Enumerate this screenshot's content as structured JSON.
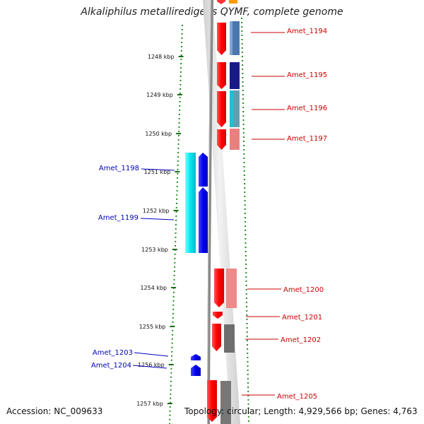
{
  "title": "Alkaliphilus metalliredigens QYMF, complete genome",
  "accession": "Accession: NC_009633",
  "summary": "Topology: circular; Length: 4,929,566 bp; Genes: 4,763",
  "ticks": [
    {
      "label": "1248 kbp"
    },
    {
      "label": "1249 kbp"
    },
    {
      "label": "1250 kbp"
    },
    {
      "label": "1251 kbp"
    },
    {
      "label": "1252 kbp"
    },
    {
      "label": "1253 kbp"
    },
    {
      "label": "1254 kbp"
    },
    {
      "label": "1255 kbp"
    },
    {
      "label": "1256 kbp"
    },
    {
      "label": "1257 kbp"
    }
  ],
  "genes_forward": [
    {
      "name": "Amet_1194",
      "color": "#cc0000"
    },
    {
      "name": "Amet_1195",
      "color": "#cc0000"
    },
    {
      "name": "Amet_1196",
      "color": "#cc0000"
    },
    {
      "name": "Amet_1197",
      "color": "#cc0000"
    },
    {
      "name": "Amet_1200",
      "color": "#cc0000"
    },
    {
      "name": "Amet_1201",
      "color": "#cc0000"
    },
    {
      "name": "Amet_1202",
      "color": "#cc0000"
    },
    {
      "name": "Amet_1205",
      "color": "#cc0000"
    }
  ],
  "genes_reverse": [
    {
      "name": "Amet_1198",
      "color": "#0000bb"
    },
    {
      "name": "Amet_1199",
      "color": "#0000bb"
    },
    {
      "name": "Amet_1203",
      "color": "#0000bb"
    },
    {
      "name": "Amet_1204",
      "color": "#0000bb"
    }
  ]
}
